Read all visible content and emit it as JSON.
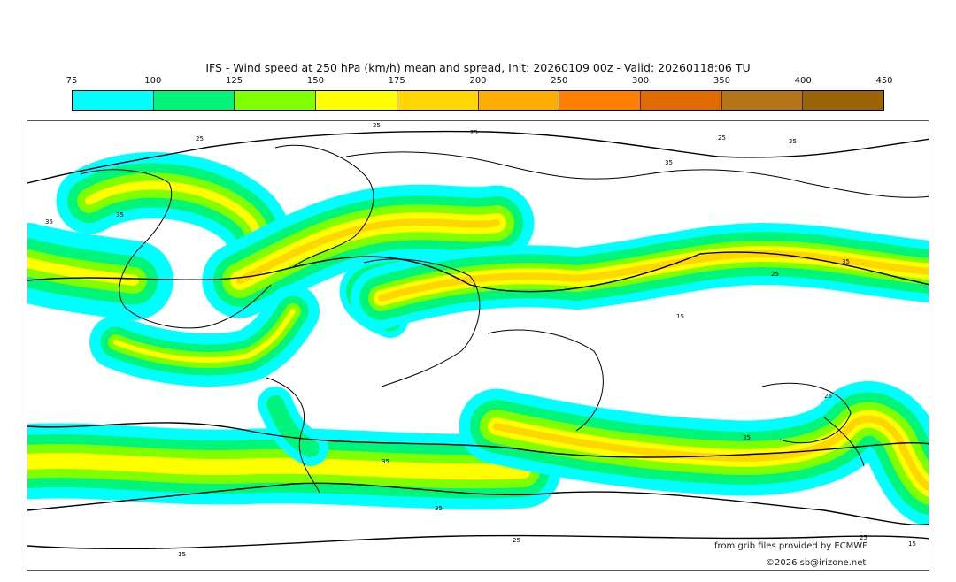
{
  "title": "IFS - Wind speed at 250 hPa (km/h) mean and spread, Init: 20260109 00z - Valid: 20260118:06 TU",
  "colorbar": {
    "ticks": [
      "75",
      "100",
      "125",
      "150",
      "175",
      "200",
      "250",
      "300",
      "350",
      "400",
      "450"
    ],
    "colors": [
      "#00ffff",
      "#00f57a",
      "#7fff00",
      "#ffff00",
      "#ffd700",
      "#ffae00",
      "#ff8000",
      "#e06c00",
      "#b37518",
      "#9a6508"
    ]
  },
  "contour_labels": [
    "25",
    "25",
    "25",
    "35",
    "35",
    "25",
    "25",
    "35",
    "15",
    "25",
    "35",
    "35",
    "25",
    "35",
    "15",
    "25",
    "25",
    "35",
    "15"
  ],
  "credits": {
    "source": "from grib files provided by ECMWF",
    "copyright": "©2026 sb@irizone.net"
  }
}
